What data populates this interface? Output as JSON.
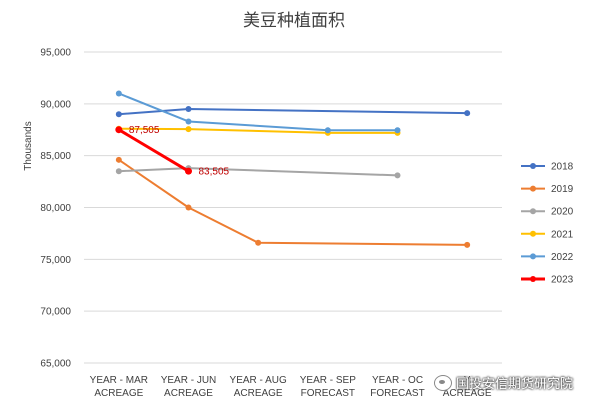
{
  "chart_data": {
    "type": "line",
    "title": "美豆种植面积",
    "ylabel": "Thousands",
    "xlabel": "",
    "ylim": [
      65000,
      95000
    ],
    "yticks": [
      "65,000",
      "70,000",
      "75,000",
      "80,000",
      "85,000",
      "90,000",
      "95,000"
    ],
    "ytick_values": [
      65000,
      70000,
      75000,
      80000,
      85000,
      90000,
      95000
    ],
    "categories": [
      [
        "YEAR - MAR",
        "ACREAGE"
      ],
      [
        "YEAR - JUN",
        "ACREAGE"
      ],
      [
        "YEAR - AUG",
        "ACREAGE"
      ],
      [
        "YEAR - SEP",
        "FORECAST"
      ],
      [
        "YEAR - OC",
        "FORECAST"
      ],
      [
        "Y",
        "ACREAGE"
      ]
    ],
    "grid": true,
    "legend_position": "right",
    "series": [
      {
        "name": "2018",
        "color": "#4472C4",
        "width": 2,
        "values": [
          89000,
          89500,
          null,
          null,
          null,
          89100
        ]
      },
      {
        "name": "2019",
        "color": "#ED7D31",
        "width": 2,
        "values": [
          84600,
          80000,
          76600,
          null,
          null,
          76400
        ]
      },
      {
        "name": "2020",
        "color": "#A5A5A5",
        "width": 2,
        "values": [
          83500,
          83800,
          null,
          null,
          83100,
          null
        ]
      },
      {
        "name": "2021",
        "color": "#FFC000",
        "width": 2,
        "values": [
          87600,
          87555,
          null,
          87200,
          87200,
          null
        ]
      },
      {
        "name": "2022",
        "color": "#5B9BD5",
        "width": 2,
        "values": [
          91000,
          88300,
          null,
          87450,
          87450,
          null
        ]
      },
      {
        "name": "2023",
        "color": "#FF0000",
        "width": 3,
        "values": [
          87505,
          83505,
          null,
          null,
          null,
          null
        ]
      }
    ],
    "annotations": [
      {
        "series": "2023",
        "point": 0,
        "text": "87,505",
        "color": "#C00000"
      },
      {
        "series": "2023",
        "point": 1,
        "text": "83,505",
        "color": "#C00000"
      }
    ]
  },
  "watermark": {
    "text": "国投安信期货研究院",
    "icon": "wechat-icon"
  }
}
